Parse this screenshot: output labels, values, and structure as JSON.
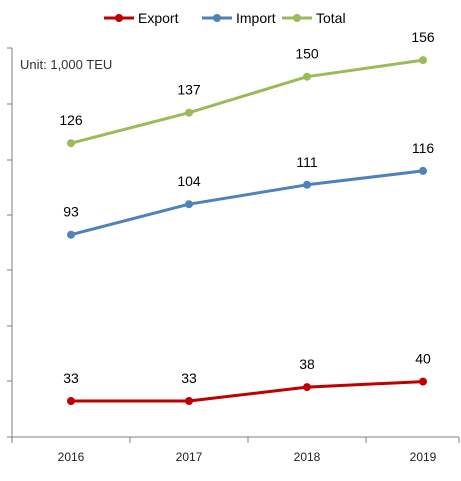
{
  "chart_data": {
    "type": "line",
    "title": "",
    "xlabel": "",
    "ylabel": "",
    "unit_text": "Unit: 1,000 TEU",
    "categories": [
      "2016",
      "2017",
      "2018",
      "2019"
    ],
    "series": [
      {
        "name": "Export",
        "color": "#c00000",
        "values": [
          33,
          33,
          38,
          40
        ]
      },
      {
        "name": "Import",
        "color": "#4f81bd",
        "values": [
          93,
          104,
          111,
          116
        ]
      },
      {
        "name": "Total",
        "color": "#9bbb59",
        "values": [
          126,
          137,
          150,
          156
        ]
      }
    ],
    "ylim": [
      20,
      160
    ],
    "grid": false,
    "legend": "top-center"
  }
}
